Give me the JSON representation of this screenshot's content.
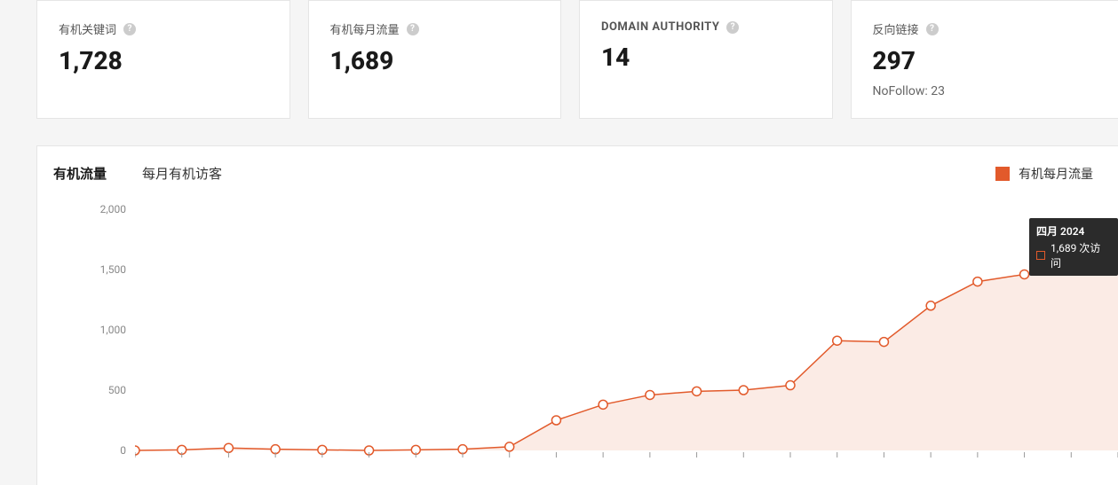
{
  "metrics": {
    "keywords": {
      "label": "有机关键词",
      "value": "1,728"
    },
    "traffic": {
      "label": "有机每月流量",
      "value": "1,689"
    },
    "authority": {
      "label": "DOMAIN AUTHORITY",
      "value": "14"
    },
    "backlinks": {
      "label": "反向链接",
      "value": "297",
      "sub": "NoFollow: 23"
    }
  },
  "chart": {
    "tabs": {
      "active": "有机流量",
      "inactive": "每月有机访客"
    },
    "legend": "有机每月流量",
    "type": "line-area",
    "series_color": "#e25a2b",
    "series_fill": "rgba(226,90,43,0.12)",
    "marker_fill": "#ffffff",
    "marker_stroke": "#e25a2b",
    "marker_radius": 5,
    "line_width": 1.5,
    "background_color": "#ffffff",
    "ylim": [
      0,
      2000
    ],
    "yticks": [
      0,
      500,
      1000,
      1500,
      2000
    ],
    "ytick_labels": [
      "0",
      "500",
      "1,000",
      "1,500",
      "2,000"
    ],
    "values": [
      0,
      5,
      20,
      10,
      5,
      0,
      5,
      10,
      30,
      250,
      380,
      460,
      490,
      500,
      540,
      910,
      900,
      1200,
      1400,
      1460,
      1510,
      1689
    ],
    "tooltip": {
      "title": "四月 2024",
      "value": "1,689 次访问",
      "index": 21
    }
  }
}
